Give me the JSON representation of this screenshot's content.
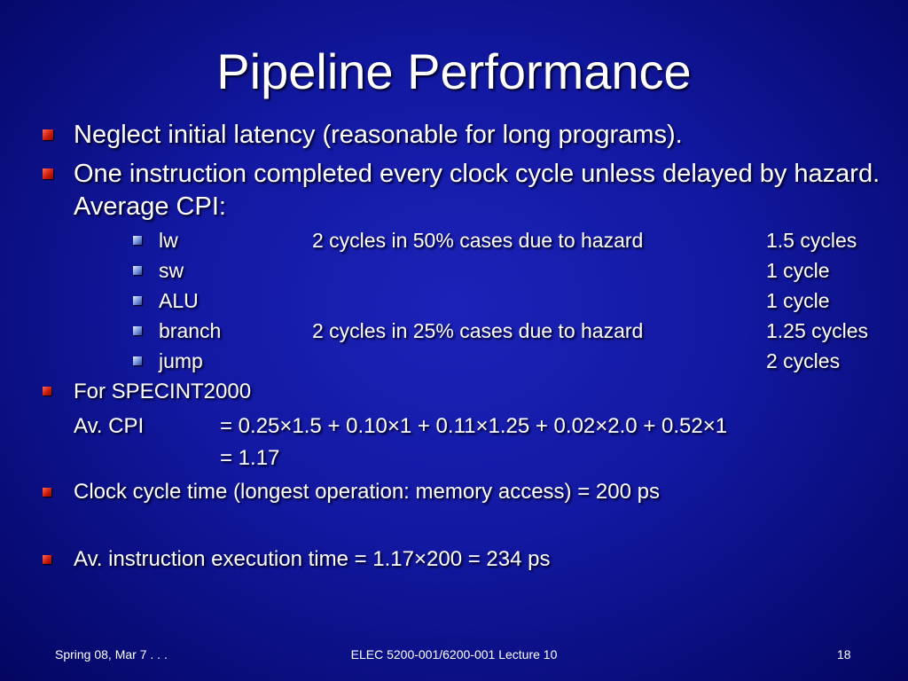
{
  "title": "Pipeline Performance",
  "bullets": [
    "Neglect initial latency (reasonable for long programs).",
    "One instruction completed every clock cycle unless delayed by hazard. Average CPI:"
  ],
  "cpi_table": [
    {
      "instr": "lw",
      "note": "2 cycles in 50% cases due to hazard",
      "cycles": "1.5 cycles"
    },
    {
      "instr": "sw",
      "cycles": "1 cycle"
    },
    {
      "instr": "ALU",
      "cycles": "1 cycle"
    },
    {
      "instr": "branch",
      "note": "2 cycles in 25% cases due to hazard",
      "cycles": "1.25 cycles"
    },
    {
      "instr": "jump",
      "cycles": "2 cycles"
    }
  ],
  "specint": {
    "heading": "For  SPECINT2000",
    "label": "Av. CPI",
    "formula": "= 0.25×1.5 + 0.10×1 + 0.11×1.25 + 0.02×2.0 + 0.52×1",
    "result": "= 1.17"
  },
  "clock": "Clock cycle time (longest operation: memory access) = 200 ps",
  "exec": "Av. instruction execution time = 1.17×200 = 234 ps",
  "footer": {
    "left": "Spring 08, Mar 7 . . .",
    "center": "ELEC 5200-001/6200-001 Lecture 10",
    "right": "18"
  }
}
